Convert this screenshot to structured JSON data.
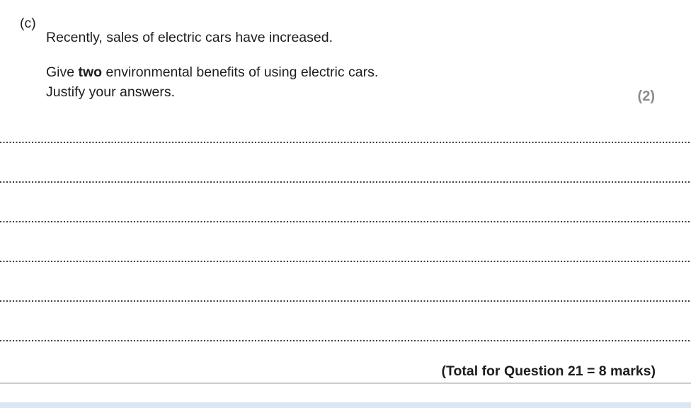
{
  "question": {
    "part_label": "(c)",
    "intro": "Recently, sales of electric cars have increased.",
    "prompt_prefix": "Give ",
    "prompt_bold": "two",
    "prompt_suffix": " environmental benefits of using electric cars.",
    "prompt_line2": "Justify your answers.",
    "marks": "(2)"
  },
  "answer_area": {
    "line_count": 6
  },
  "footer": {
    "total_text": "(Total for Question 21 = 8 marks)"
  },
  "colors": {
    "text": "#1d1d1b",
    "marks_gray": "#8c8c8c",
    "dotted_line": "#3c3c3c",
    "divider": "#cccccc",
    "bottom_bar": "#dae7f2"
  }
}
